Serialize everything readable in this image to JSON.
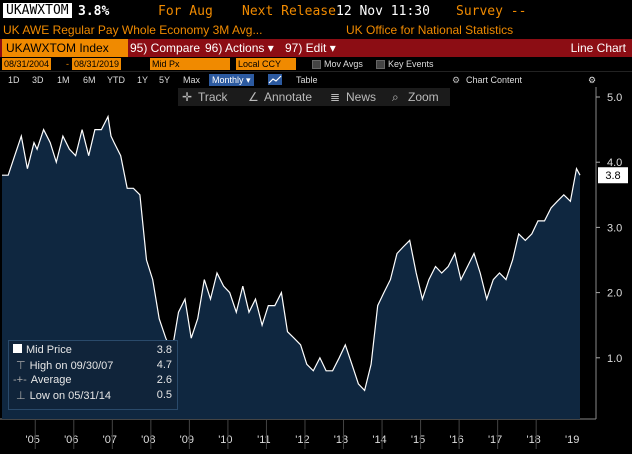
{
  "header": {
    "ticker": "UKAWXTOM",
    "value": "3.8%",
    "for_label": "For Aug",
    "next_release_label": "Next Release",
    "next_release_value": "12 Nov 11:30",
    "survey_label": "Survey --"
  },
  "subheader": {
    "description": "UK AWE Regular Pay Whole Economy 3M Avg...",
    "source": "UK Office for National Statistics"
  },
  "toolbar": {
    "security": "UKAWXTOM Index",
    "compare": "95) Compare",
    "actions": "96) Actions ▾",
    "edit": "97) Edit ▾",
    "view_title": "Line Chart"
  },
  "options": {
    "start_date": "08/31/2004",
    "end_date": "08/31/2019",
    "price_field": "Mid Px",
    "currency": "Local CCY",
    "mov_avgs": "Mov Avgs",
    "key_events": "Key Events"
  },
  "ranges": {
    "items": [
      "1D",
      "3D",
      "1M",
      "6M",
      "YTD",
      "1Y",
      "5Y",
      "Max"
    ],
    "frequency": "Monthly ▾",
    "table": "Table",
    "chart_content": "Chart Content"
  },
  "chart_tools": {
    "track": "Track",
    "annotate": "Annotate",
    "news": "News",
    "zoom": "Zoom"
  },
  "legend": {
    "mid_label": "Mid Price",
    "mid_value": "3.8",
    "high_label": "High on 09/30/07",
    "high_value": "4.7",
    "avg_label": "Average",
    "avg_value": "2.6",
    "low_label": "Low on 05/31/14",
    "low_value": "0.5"
  },
  "colors": {
    "accent": "#f08a00",
    "bar": "#8c0d14",
    "series_fill": "#0f2740",
    "series_line": "#ffffff"
  },
  "chart_data": {
    "type": "area",
    "title": "UKAWXTOM Index",
    "series_name": "Mid Price",
    "ylim": [
      0,
      5.0
    ],
    "yticks": [
      "1.0",
      "2.0",
      "3.0",
      "4.0",
      "5.0"
    ],
    "xticks": [
      "'05",
      "'06",
      "'07",
      "'08",
      "'09",
      "'10",
      "'11",
      "'12",
      "'13",
      "'14",
      "'15",
      "'16",
      "'17",
      "'18",
      "'19"
    ],
    "last_value_label": "3.8",
    "x": [
      2004.67,
      2004.83,
      2005.0,
      2005.17,
      2005.33,
      2005.5,
      2005.58,
      2005.75,
      2005.92,
      2006.08,
      2006.25,
      2006.42,
      2006.58,
      2006.75,
      2006.92,
      2007.08,
      2007.25,
      2007.42,
      2007.5,
      2007.58,
      2007.75,
      2007.92,
      2008.08,
      2008.25,
      2008.42,
      2008.58,
      2008.75,
      2008.92,
      2009.08,
      2009.25,
      2009.42,
      2009.58,
      2009.75,
      2009.92,
      2010.08,
      2010.25,
      2010.42,
      2010.58,
      2010.75,
      2010.92,
      2011.08,
      2011.25,
      2011.42,
      2011.58,
      2011.75,
      2011.92,
      2012.08,
      2012.25,
      2012.42,
      2012.58,
      2012.75,
      2012.92,
      2013.08,
      2013.25,
      2013.42,
      2013.58,
      2013.75,
      2013.92,
      2014.08,
      2014.25,
      2014.42,
      2014.58,
      2014.75,
      2014.92,
      2015.08,
      2015.25,
      2015.42,
      2015.58,
      2015.75,
      2015.92,
      2016.08,
      2016.25,
      2016.42,
      2016.58,
      2016.75,
      2016.92,
      2017.08,
      2017.25,
      2017.42,
      2017.58,
      2017.75,
      2017.92,
      2018.08,
      2018.25,
      2018.42,
      2018.58,
      2018.75,
      2018.92,
      2019.08,
      2019.25,
      2019.42,
      2019.58,
      2019.67
    ],
    "values": [
      3.8,
      3.8,
      4.1,
      4.4,
      3.9,
      4.3,
      4.2,
      4.5,
      4.3,
      4.0,
      4.4,
      4.2,
      4.1,
      4.5,
      4.1,
      4.5,
      4.5,
      4.7,
      4.4,
      4.3,
      4.1,
      3.6,
      3.6,
      3.5,
      2.5,
      2.2,
      1.6,
      1.3,
      1.1,
      1.7,
      1.9,
      1.3,
      1.6,
      2.2,
      1.9,
      2.3,
      2.1,
      2.0,
      1.7,
      2.1,
      1.7,
      1.9,
      1.5,
      1.8,
      1.8,
      2.0,
      1.4,
      1.3,
      1.2,
      0.9,
      0.8,
      1.0,
      0.8,
      0.8,
      1.0,
      1.2,
      0.9,
      0.6,
      0.5,
      0.9,
      1.8,
      2.0,
      2.2,
      2.6,
      2.7,
      2.8,
      2.3,
      1.9,
      2.2,
      2.4,
      2.3,
      2.4,
      2.6,
      2.2,
      2.4,
      2.6,
      2.3,
      1.9,
      2.2,
      2.3,
      2.2,
      2.5,
      2.9,
      2.8,
      2.9,
      3.1,
      3.1,
      3.3,
      3.4,
      3.5,
      3.4,
      3.9,
      3.8
    ]
  }
}
